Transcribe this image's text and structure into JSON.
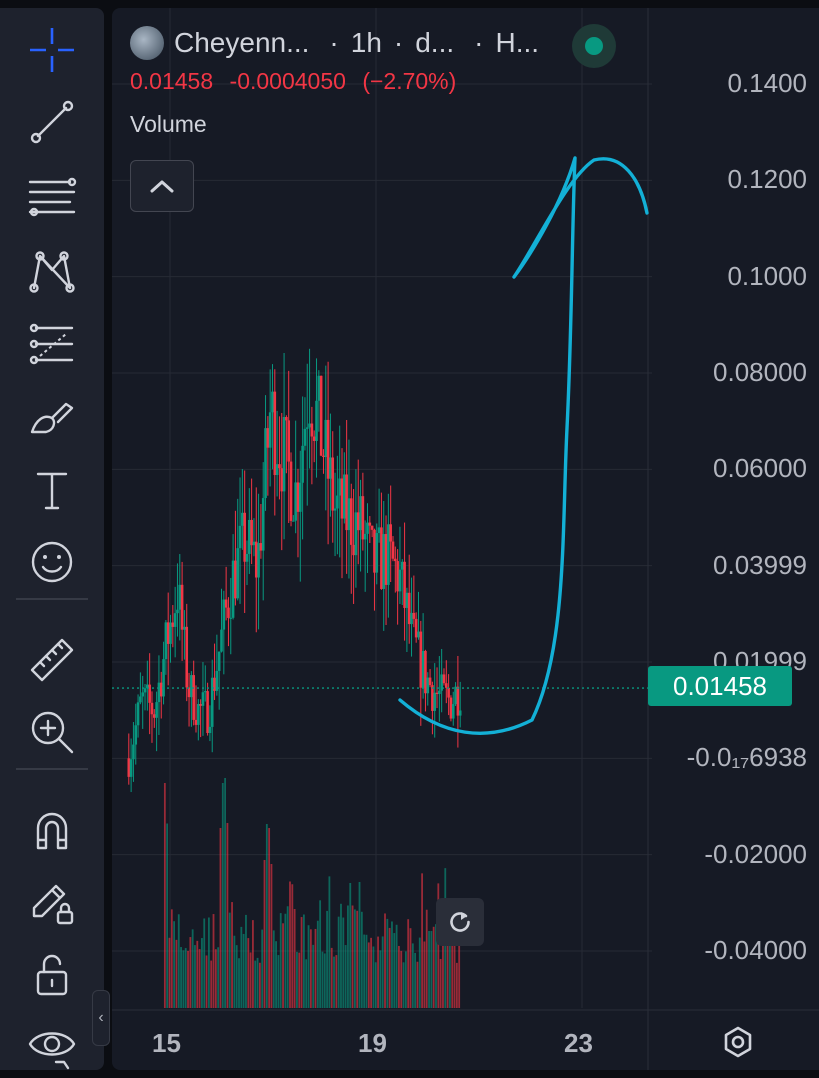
{
  "toolbar": {
    "tools": [
      {
        "name": "crosshair-tool",
        "icon": "crosshair-icon"
      },
      {
        "name": "trend-line-tool",
        "icon": "trend-line-icon"
      },
      {
        "name": "fib-levels-tool",
        "icon": "fib-levels-icon"
      },
      {
        "name": "pattern-tool",
        "icon": "pattern-icon"
      },
      {
        "name": "forecast-tool",
        "icon": "forecast-icon"
      },
      {
        "name": "brush-tool",
        "icon": "brush-icon"
      },
      {
        "name": "text-tool",
        "icon": "text-icon"
      },
      {
        "name": "emoji-tool",
        "icon": "emoji-icon"
      },
      {
        "name": "ruler-tool",
        "icon": "ruler-icon"
      },
      {
        "name": "zoom-in-tool",
        "icon": "zoom-in-icon"
      },
      {
        "name": "magnet-tool",
        "icon": "magnet-icon"
      },
      {
        "name": "lock-drawings-tool",
        "icon": "pencil-lock-icon"
      },
      {
        "name": "lock-all-tool",
        "icon": "lock-icon"
      },
      {
        "name": "hide-tool",
        "icon": "eye-icon"
      }
    ],
    "active_color": "#2962ff",
    "collapse_icon": "chevron-left-icon",
    "collapse_glyph": "‹"
  },
  "legend": {
    "symbol": "Cheyenn...",
    "interval": "1h",
    "exchange": "d...",
    "chart_style": "H...",
    "last_price": "0.01458",
    "change": "-0.0004050",
    "change_percent": "(−2.70%)",
    "study": "Volume",
    "status_color": "#089981",
    "down_color": "#f23645"
  },
  "price_axis": {
    "labels": [
      "0.1400",
      "0.1200",
      "0.1000",
      "0.08000",
      "0.06000",
      "0.03999",
      "0.01999",
      "-0.0₁₇6938",
      "-0.02000",
      "-0.04000"
    ],
    "last_price_label": "0.01458",
    "last_price_color": "#089981"
  },
  "time_axis": {
    "labels": [
      "15",
      "19",
      "23"
    ]
  },
  "colors": {
    "up": "#089981",
    "down": "#f23645",
    "drawing": "#13b0d6",
    "grid": "#262a35"
  },
  "chart_data": {
    "type": "candlestick",
    "title": "",
    "ylim": [
      -0.055,
      0.145
    ],
    "y_ticks": [
      0.14,
      0.12,
      0.1,
      0.08,
      0.06,
      0.04,
      0.02,
      0.0,
      -0.02,
      -0.04
    ],
    "x_ticks": [
      15,
      19,
      23
    ],
    "x_range_days": [
      13.8,
      25.2
    ],
    "last_price": 0.01458,
    "price_path": [
      {
        "t": 14.2,
        "p": 0.0
      },
      {
        "t": 14.45,
        "p": 0.012
      },
      {
        "t": 14.7,
        "p": 0.01
      },
      {
        "t": 14.95,
        "p": 0.025
      },
      {
        "t": 15.15,
        "p": 0.035
      },
      {
        "t": 15.35,
        "p": 0.015
      },
      {
        "t": 15.55,
        "p": 0.01
      },
      {
        "t": 15.75,
        "p": 0.01
      },
      {
        "t": 15.95,
        "p": 0.022
      },
      {
        "t": 16.2,
        "p": 0.037
      },
      {
        "t": 16.45,
        "p": 0.045
      },
      {
        "t": 16.7,
        "p": 0.04
      },
      {
        "t": 16.95,
        "p": 0.072
      },
      {
        "t": 17.2,
        "p": 0.063
      },
      {
        "t": 17.45,
        "p": 0.055
      },
      {
        "t": 17.7,
        "p": 0.078
      },
      {
        "t": 17.95,
        "p": 0.066
      },
      {
        "t": 18.2,
        "p": 0.052
      },
      {
        "t": 18.45,
        "p": 0.05
      },
      {
        "t": 18.7,
        "p": 0.048
      },
      {
        "t": 18.95,
        "p": 0.04
      },
      {
        "t": 19.2,
        "p": 0.042
      },
      {
        "t": 19.45,
        "p": 0.038
      },
      {
        "t": 19.7,
        "p": 0.025
      },
      {
        "t": 19.95,
        "p": 0.017
      },
      {
        "t": 20.2,
        "p": 0.013
      },
      {
        "t": 20.45,
        "p": 0.012
      },
      {
        "t": 20.65,
        "p": 0.015
      }
    ],
    "volume_peaks": [
      {
        "t": 14.9,
        "v": 0.9
      },
      {
        "t": 16.05,
        "v": 1.0
      },
      {
        "t": 16.9,
        "v": 0.8
      },
      {
        "t": 17.35,
        "v": 0.55
      },
      {
        "t": 18.5,
        "v": 0.5
      },
      {
        "t": 20.0,
        "v": 0.35
      }
    ],
    "drawing": "freehand-arrow-up"
  }
}
